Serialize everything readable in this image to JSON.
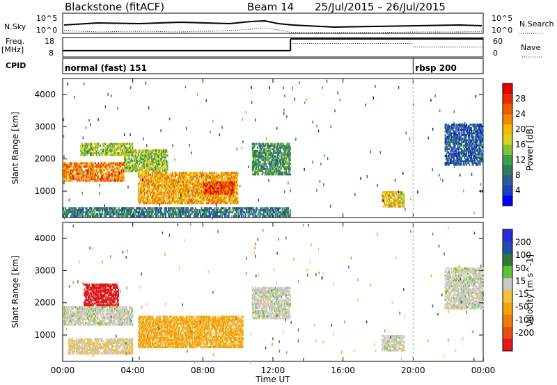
{
  "header": {
    "site": "Blackstone (fitACF)",
    "beam": "Beam 14",
    "dates": "25/Jul/2015 – 26/Jul/2015"
  },
  "aux": {
    "nsky_label": "N.Sky",
    "nsky_ticks": [
      "10^5",
      "10^0"
    ],
    "nsearch_label": "N.Search",
    "nsearch_ticks": [
      "10^5",
      "10^0"
    ],
    "freq_label": "Freq.",
    "freq_unit": "[MHz]",
    "freq_ticks": [
      "18",
      "8"
    ],
    "nave_label": "Nave",
    "nave_ticks": [
      "60",
      "0"
    ],
    "cpid_label": "CPID",
    "cpid_segments": [
      {
        "name": "normal (fast) 151",
        "start_hour": 0,
        "end_hour": 20
      },
      {
        "name": "rbsp 200",
        "start_hour": 20,
        "end_hour": 24
      }
    ],
    "freq_series": [
      {
        "start_hour": 0,
        "end_hour": 13,
        "level": 0.35
      },
      {
        "start_hour": 13,
        "end_hour": 24,
        "level": 1.0
      }
    ],
    "nave_series": [
      {
        "start_hour": 0,
        "end_hour": 13,
        "level": 0.0
      },
      {
        "start_hour": 13,
        "end_hour": 20,
        "level": 0.75
      },
      {
        "start_hour": 20,
        "end_hour": 24,
        "level": 0.55
      }
    ]
  },
  "chart_data": [
    {
      "type": "heatmap",
      "title": "Power",
      "xlabel": "Time UT",
      "ylabel": "Slant Range [km]",
      "xlim_hours": [
        0,
        24
      ],
      "ylim": [
        180,
        4500
      ],
      "x_ticks": [
        "00:00",
        "04:00",
        "08:00",
        "12:00",
        "16:00",
        "20:00",
        "00:00"
      ],
      "y_ticks": [
        1000,
        2000,
        3000,
        4000
      ],
      "colorbar": {
        "label": "Power [dB]",
        "ticks": [
          "4",
          "8",
          "12",
          "16",
          "20",
          "24",
          "28"
        ],
        "range": [
          0,
          30
        ],
        "colors": [
          "#0000ff",
          "#1a3fbf",
          "#2f5b8f",
          "#2e7d5a",
          "#3fa04a",
          "#86c03a",
          "#d8d21f",
          "#f5b800",
          "#f28a00",
          "#ee5a00",
          "#e62d00",
          "#e00000"
        ]
      },
      "regions": [
        {
          "t0": 0.0,
          "t1": 3.5,
          "r0": 1300,
          "r1": 1900,
          "v": 22
        },
        {
          "t0": 1.0,
          "t1": 4.0,
          "r0": 2100,
          "r1": 2500,
          "v": 14
        },
        {
          "t0": 3.5,
          "t1": 6.0,
          "r0": 1600,
          "r1": 2300,
          "v": 14
        },
        {
          "t0": 4.3,
          "t1": 10.0,
          "r0": 600,
          "r1": 1600,
          "v": 20
        },
        {
          "t0": 8.0,
          "t1": 9.8,
          "r0": 900,
          "r1": 1300,
          "v": 26
        },
        {
          "t0": 10.8,
          "t1": 13.0,
          "r0": 1500,
          "r1": 2500,
          "v": 10
        },
        {
          "t0": 18.2,
          "t1": 19.5,
          "r0": 500,
          "r1": 1000,
          "v": 18
        },
        {
          "t0": 21.8,
          "t1": 24.0,
          "r0": 1800,
          "r1": 3100,
          "v": 6
        },
        {
          "t0": 0.0,
          "t1": 13.0,
          "r0": 200,
          "r1": 500,
          "v": 8
        }
      ]
    },
    {
      "type": "heatmap",
      "title": "Velocity",
      "xlabel": "Time UT",
      "ylabel": "Slant Range [km]",
      "xlim_hours": [
        0,
        24
      ],
      "ylim": [
        180,
        4500
      ],
      "x_ticks": [
        "00:00",
        "04:00",
        "08:00",
        "12:00",
        "16:00",
        "20:00",
        "00:00"
      ],
      "y_ticks": [
        1000,
        2000,
        3000,
        4000
      ],
      "colorbar": {
        "label": "Velocity [m s^-1]",
        "ticks": [
          "200",
          "100",
          "50",
          "15",
          "-15",
          "-50",
          "-100",
          "-200"
        ],
        "colors": [
          "#2a2ae0",
          "#1f4fa8",
          "#2f7a3a",
          "#5cc23a",
          "#c8c8c8",
          "#f3c23a",
          "#f2a20f",
          "#ee7a10",
          "#e84e10",
          "#e01818"
        ]
      },
      "regions": [
        {
          "t0": 1.2,
          "t1": 3.2,
          "r0": 1900,
          "r1": 2600,
          "v": -200
        },
        {
          "t0": 0.0,
          "t1": 4.0,
          "r0": 1300,
          "r1": 1900,
          "v": 0
        },
        {
          "t0": 4.3,
          "t1": 10.3,
          "r0": 600,
          "r1": 1600,
          "v": -60
        },
        {
          "t0": 0.3,
          "t1": 4.0,
          "r0": 400,
          "r1": 900,
          "v": -15
        },
        {
          "t0": 10.8,
          "t1": 13.0,
          "r0": 1500,
          "r1": 2500,
          "v": 0
        },
        {
          "t0": 18.2,
          "t1": 19.5,
          "r0": 500,
          "r1": 1000,
          "v": 0
        },
        {
          "t0": 21.8,
          "t1": 24.0,
          "r0": 1800,
          "r1": 3100,
          "v": 0
        }
      ]
    }
  ]
}
